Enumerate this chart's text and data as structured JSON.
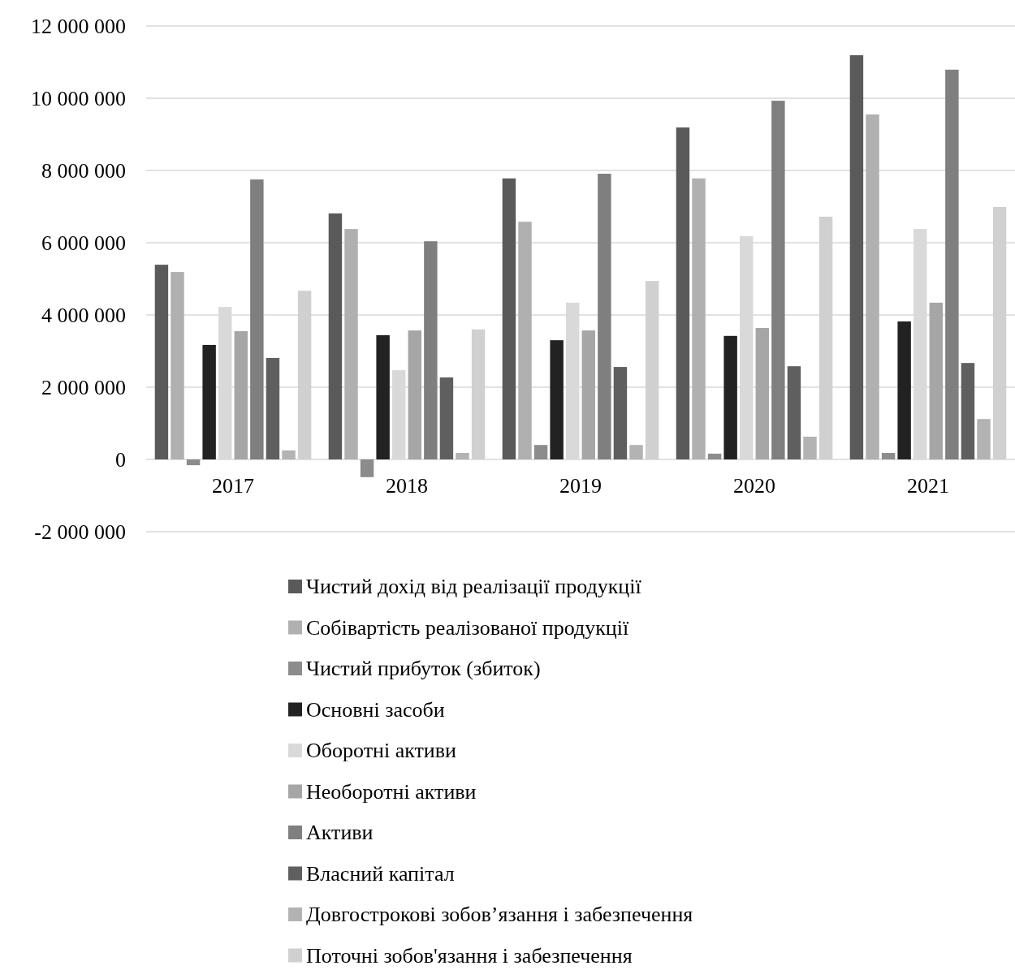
{
  "chart_data": {
    "type": "bar",
    "categories": [
      "2017",
      "2018",
      "2019",
      "2020",
      "2021"
    ],
    "series": [
      {
        "name": "Чистий дохід від реалізації продукції",
        "color": "#5a5a5a",
        "values": [
          5390000,
          6810000,
          7780000,
          9190000,
          11190000
        ]
      },
      {
        "name": "Собівартість реалізованої продукції",
        "color": "#b0b0b0",
        "values": [
          5190000,
          6380000,
          6580000,
          7780000,
          9550000
        ]
      },
      {
        "name": "Чистий прибуток (збиток)",
        "color": "#8c8c8c",
        "values": [
          -160000,
          -490000,
          400000,
          160000,
          180000
        ]
      },
      {
        "name": "Основні засоби",
        "color": "#222222",
        "values": [
          3170000,
          3440000,
          3300000,
          3420000,
          3820000
        ]
      },
      {
        "name": "Оборотні активи",
        "color": "#d9d9d9",
        "values": [
          4220000,
          2470000,
          4340000,
          6180000,
          6380000
        ]
      },
      {
        "name": "Необоротні активи",
        "color": "#a6a6a6",
        "values": [
          3550000,
          3570000,
          3570000,
          3640000,
          4340000
        ]
      },
      {
        "name": "Активи",
        "color": "#7f7f7f",
        "values": [
          7750000,
          6040000,
          7910000,
          9930000,
          10790000
        ]
      },
      {
        "name": "Власний капітал",
        "color": "#5f5f5f",
        "values": [
          2810000,
          2270000,
          2560000,
          2580000,
          2670000
        ]
      },
      {
        "name": "Довгострокові зобов’язання і забезпечення",
        "color": "#b3b3b3",
        "values": [
          250000,
          180000,
          400000,
          630000,
          1120000
        ]
      },
      {
        "name": "Поточні зобов'язання і забезпечення",
        "color": "#d0d0d0",
        "values": [
          4670000,
          3600000,
          4940000,
          6720000,
          6990000
        ]
      }
    ],
    "ylim": [
      -2000000,
      12000000
    ],
    "yticks": [
      {
        "value": -2000000,
        "label": "-2 000 000"
      },
      {
        "value": 0,
        "label": "0"
      },
      {
        "value": 2000000,
        "label": "2 000 000"
      },
      {
        "value": 4000000,
        "label": "4 000 000"
      },
      {
        "value": 6000000,
        "label": "6 000 000"
      },
      {
        "value": 8000000,
        "label": "8 000 000"
      },
      {
        "value": 10000000,
        "label": "10 000 000"
      },
      {
        "value": 12000000,
        "label": "12 000 000"
      }
    ],
    "grid": "y",
    "legend": "bottom"
  }
}
